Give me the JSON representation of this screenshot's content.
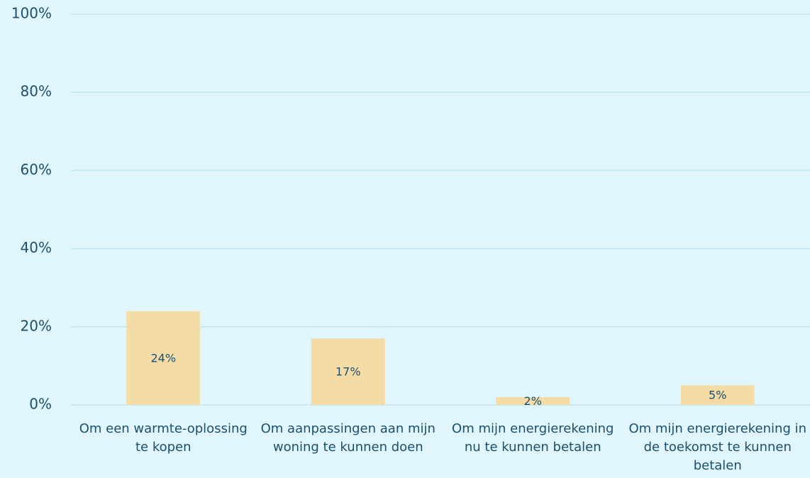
{
  "chart_data": {
    "type": "bar",
    "categories": [
      "Om een warmte-oplossing te kopen",
      "Om aanpassingen aan mijn woning te kunnen doen",
      "Om mijn energierekening nu te kunnen betalen",
      "Om mijn energierekening in de toekomst te kunnen betalen"
    ],
    "values": [
      24,
      17,
      2,
      5
    ],
    "value_labels": [
      "24%",
      "17%",
      "2%",
      "5%"
    ],
    "color": "#f5dca6",
    "ylim": [
      0,
      100
    ],
    "yticks": [
      {
        "value": 0,
        "label": "0%"
      },
      {
        "value": 20,
        "label": "20%"
      },
      {
        "value": 40,
        "label": "40%"
      },
      {
        "value": 60,
        "label": "60%"
      },
      {
        "value": 80,
        "label": "80%"
      },
      {
        "value": 100,
        "label": "100%"
      }
    ],
    "grid": true
  }
}
